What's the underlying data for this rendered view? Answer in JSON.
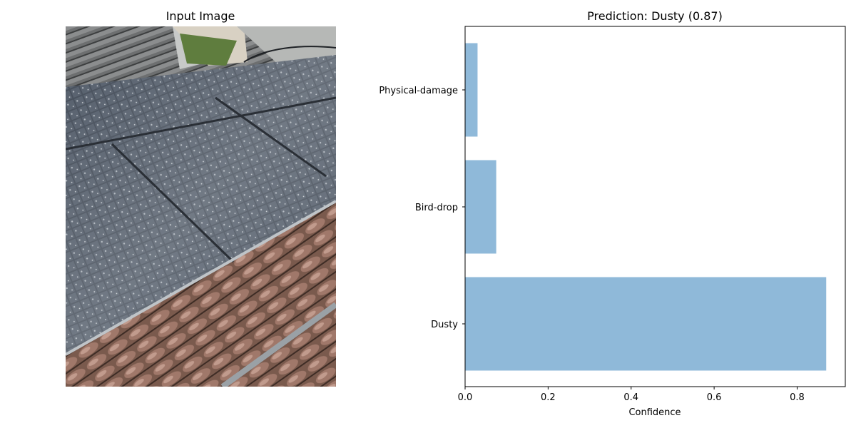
{
  "left_panel": {
    "title": "Input Image"
  },
  "chart_data": {
    "type": "bar",
    "orientation": "horizontal",
    "title": "Prediction: Dusty (0.87)",
    "xlabel": "Confidence",
    "ylabel": "",
    "categories": [
      "Dusty",
      "Bird-drop",
      "Physical-damage"
    ],
    "values": [
      0.87,
      0.075,
      0.03
    ],
    "xlim": [
      0,
      0.916
    ],
    "xticks": [
      0.0,
      0.2,
      0.4,
      0.6,
      0.8
    ],
    "xtick_labels": [
      "0.0",
      "0.2",
      "0.4",
      "0.6",
      "0.8"
    ],
    "bar_color": "#8fb9d9",
    "grid": false,
    "legend": "none"
  }
}
